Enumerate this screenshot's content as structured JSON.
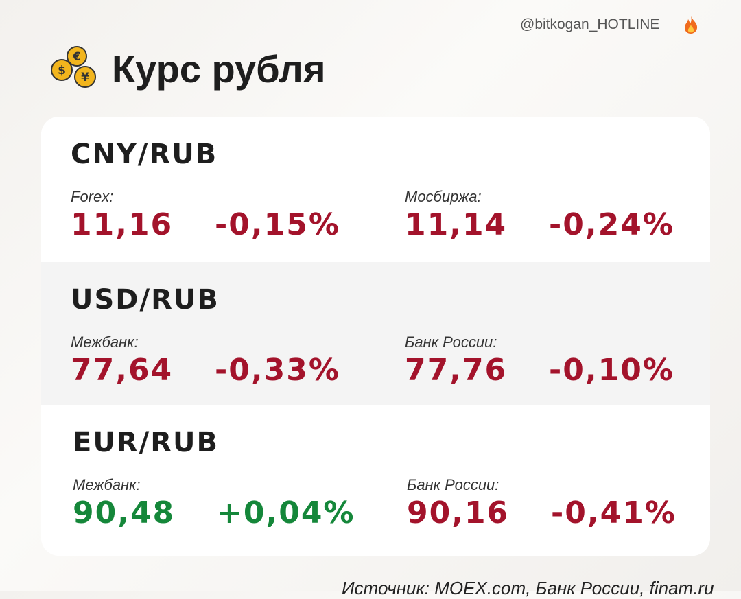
{
  "header": {
    "handle": "@bitkogan_HOTLINE",
    "title": "Курс рубля"
  },
  "sections": [
    {
      "pair": "CNY/RUB",
      "quotes": [
        {
          "label": "Forex:",
          "value": "11,16",
          "change": "-0,15%"
        },
        {
          "label": "Мосбиржа:",
          "value": "11,14",
          "change": "-0,24%"
        }
      ]
    },
    {
      "pair": "USD/RUB",
      "quotes": [
        {
          "label": "Межбанк:",
          "value": "77,64",
          "change": "-0,33%"
        },
        {
          "label": "Банк России:",
          "value": "77,76",
          "change": "-0,10%"
        }
      ]
    },
    {
      "pair": "EUR/RUB",
      "quotes": [
        {
          "label": "Межбанк:",
          "value": "90,48",
          "change": "+0,04%"
        },
        {
          "label": "Банк России:",
          "value": "90,16",
          "change": "-0,41%"
        }
      ]
    }
  ],
  "source": "Источник: MOEX.com, Банк России, finam.ru"
}
